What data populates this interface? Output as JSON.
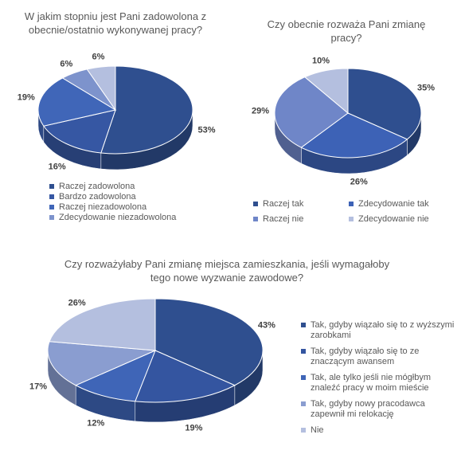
{
  "chart_data": [
    {
      "type": "pie",
      "title": "W jakim stopniu jest Pani zadowolona z obecnie/ostatnio wykonywanej pracy?",
      "categories": [
        "Raczej zadowolona",
        "Bardzo zadowolona",
        "Raczej niezadowolona",
        "Zdecydowanie niezadowolona",
        null
      ],
      "values": [
        53,
        16,
        19,
        6,
        6
      ],
      "value_labels": [
        "53%",
        "16%",
        "19%",
        "6%",
        "6%"
      ],
      "colors": [
        "#2f4f8f",
        "#3657a3",
        "#4066b8",
        "#7d93cc",
        "#b4bfdf"
      ]
    },
    {
      "type": "pie",
      "title": "Czy obecnie rozważa Pani zmianę pracy?",
      "categories": [
        "Raczej tak",
        "Zdecydowanie tak",
        "Raczej nie",
        "Zdecydowanie nie"
      ],
      "values": [
        35,
        26,
        29,
        10
      ],
      "value_labels": [
        "35%",
        "26%",
        "29%",
        "10%"
      ],
      "colors": [
        "#2f4f8f",
        "#3d62b6",
        "#6f86c8",
        "#b4bfdf"
      ]
    },
    {
      "type": "pie",
      "title": "Czy rozważyłaby Pani zmianę miejsca zamieszkania, jeśli wymagałoby tego nowe wyzwanie zawodowe?",
      "categories": [
        "Tak, gdyby wiązało się to z wyższymi zarobkami",
        "Tak, gdyby wiązało się to ze znaczącym awansem",
        "Tak, ale tylko jeśli nie mógłbym znaleźć pracy w moim mieście",
        "Tak, gdyby nowy pracodawca zapewnił mi relokację",
        "Nie"
      ],
      "values": [
        43,
        19,
        12,
        17,
        26
      ],
      "value_labels": [
        "43%",
        "19%",
        "12%",
        "17%",
        "26%"
      ],
      "colors": [
        "#2f4f8f",
        "#3455a0",
        "#3f65b7",
        "#8a9dd0",
        "#b4bfdf"
      ]
    }
  ]
}
